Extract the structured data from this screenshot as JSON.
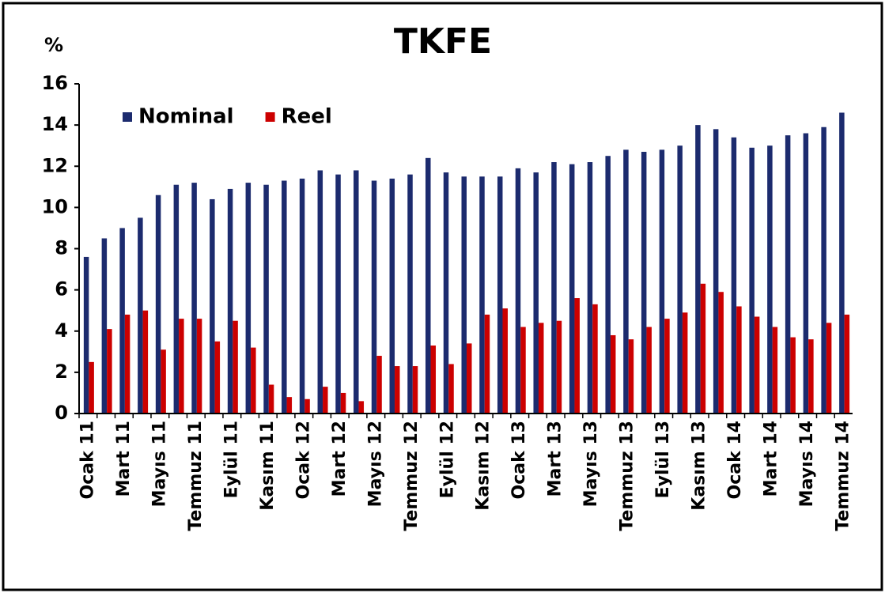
{
  "chart_data": {
    "type": "bar",
    "title": "TKFE",
    "y_label": "%",
    "categories": [
      "Ocak 11",
      null,
      "Mart 11",
      null,
      "Mayıs 11",
      null,
      "Temmuz 11",
      null,
      "Eylül 11",
      null,
      "Kasım 11",
      null,
      "Ocak 12",
      null,
      "Mart 12",
      null,
      "Mayıs 12",
      null,
      "Temmuz 12",
      null,
      "Eylül 12",
      null,
      "Kasım 12",
      null,
      "Ocak 13",
      null,
      "Mart 13",
      null,
      "Mayıs 13",
      null,
      "Temmuz 13",
      null,
      "Eylül 13",
      null,
      "Kasım 13",
      null,
      "Ocak 14",
      null,
      "Mart 14",
      null,
      "Mayıs 14",
      null,
      "Temmuz 14"
    ],
    "series": [
      {
        "name": "Nominal",
        "color": "#1c2b6e",
        "values": [
          7.6,
          8.5,
          9.0,
          9.5,
          10.6,
          11.1,
          11.2,
          10.4,
          10.9,
          11.2,
          11.1,
          11.3,
          11.4,
          11.8,
          11.6,
          11.8,
          11.3,
          11.4,
          11.6,
          12.4,
          11.7,
          11.5,
          11.5,
          11.5,
          11.9,
          11.7,
          12.2,
          12.1,
          12.2,
          12.5,
          12.8,
          12.7,
          12.8,
          13.0,
          14.0,
          13.8,
          13.4,
          12.9,
          13.0,
          13.5,
          13.6,
          13.9,
          14.6
        ]
      },
      {
        "name": "Reel",
        "color": "#cc0000",
        "values": [
          2.5,
          4.1,
          4.8,
          5.0,
          3.1,
          4.6,
          4.6,
          3.5,
          4.5,
          3.2,
          1.4,
          0.8,
          0.7,
          1.3,
          1.0,
          0.6,
          2.8,
          2.3,
          2.3,
          3.3,
          2.4,
          3.4,
          4.8,
          5.1,
          4.2,
          4.4,
          4.5,
          5.6,
          5.3,
          3.8,
          3.6,
          4.2,
          4.6,
          4.9,
          6.3,
          5.9,
          5.2,
          4.7,
          4.2,
          3.7,
          3.6,
          4.4,
          4.8
        ]
      }
    ],
    "ylim": [
      0,
      16
    ],
    "yticks": [
      0,
      2,
      4,
      6,
      8,
      10,
      12,
      14,
      16
    ],
    "grid": false,
    "legend": "upper left"
  }
}
